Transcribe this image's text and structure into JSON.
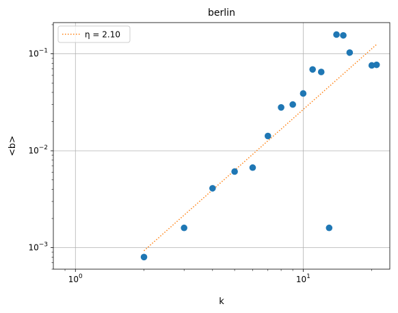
{
  "chart_data": {
    "type": "scatter",
    "title": "berlin",
    "xlabel": "k",
    "ylabel": "<b>",
    "xscale": "log",
    "yscale": "log",
    "xlim": [
      0.8,
      24
    ],
    "ylim": [
      0.0006,
      0.21
    ],
    "grid": true,
    "legend_position": "top-left",
    "xticks": [
      {
        "value": 1,
        "base": "10",
        "exp": "0"
      },
      {
        "value": 10,
        "base": "10",
        "exp": "1"
      }
    ],
    "yticks": [
      {
        "value": 0.001,
        "base": "10",
        "exp": "−3"
      },
      {
        "value": 0.01,
        "base": "10",
        "exp": "−2"
      },
      {
        "value": 0.1,
        "base": "10",
        "exp": "−1"
      }
    ],
    "series": [
      {
        "kind": "points",
        "color": "#1f77b4",
        "points": [
          {
            "x": 2,
            "y": 0.0008
          },
          {
            "x": 3,
            "y": 0.0016
          },
          {
            "x": 4,
            "y": 0.0041
          },
          {
            "x": 5,
            "y": 0.0061
          },
          {
            "x": 6,
            "y": 0.0067
          },
          {
            "x": 7,
            "y": 0.0142
          },
          {
            "x": 8,
            "y": 0.028
          },
          {
            "x": 9,
            "y": 0.03
          },
          {
            "x": 10,
            "y": 0.039
          },
          {
            "x": 11,
            "y": 0.069
          },
          {
            "x": 12,
            "y": 0.065
          },
          {
            "x": 13,
            "y": 0.0016
          },
          {
            "x": 14,
            "y": 0.158
          },
          {
            "x": 15,
            "y": 0.155
          },
          {
            "x": 16,
            "y": 0.103
          },
          {
            "x": 20,
            "y": 0.076
          },
          {
            "x": 21,
            "y": 0.077
          }
        ]
      },
      {
        "kind": "fit-line",
        "name": "η = 2.10",
        "color": "#ff7f0e",
        "points": [
          {
            "x": 2,
            "y": 0.00093
          },
          {
            "x": 21,
            "y": 0.125
          }
        ]
      }
    ]
  }
}
